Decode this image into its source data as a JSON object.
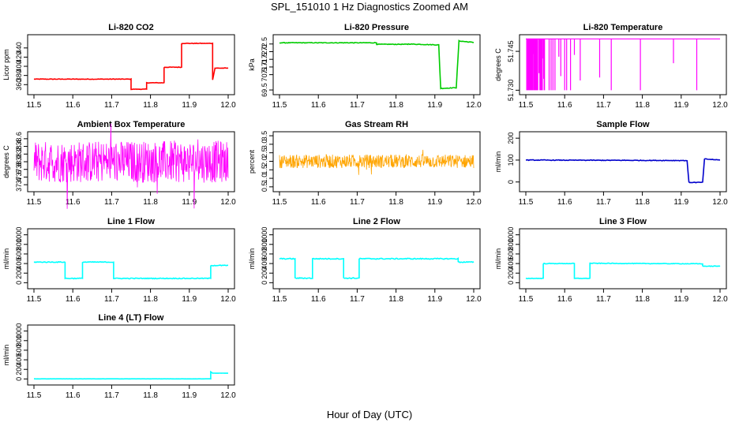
{
  "figure": {
    "title": "SPL_151010  1 Hz Diagnostics Zoomed AM",
    "xlabel": "Hour of Day (UTC)"
  },
  "chart_data": [
    {
      "type": "line",
      "title": "Li-820 CO2",
      "ylabel": "Licor ppm",
      "color": "#ff0000",
      "xlim": [
        11.5,
        12.0
      ],
      "ylim": [
        345,
        462
      ],
      "xticks": [
        "11.5",
        "11.6",
        "11.7",
        "11.8",
        "11.9",
        "12.0"
      ],
      "yticks": [
        "360",
        "380",
        "400",
        "420",
        "440"
      ],
      "noise": 0.6,
      "points": [
        [
          11.5,
          372
        ],
        [
          11.75,
          372
        ],
        [
          11.75,
          350
        ],
        [
          11.79,
          350
        ],
        [
          11.79,
          364
        ],
        [
          11.835,
          364
        ],
        [
          11.835,
          398
        ],
        [
          11.88,
          398
        ],
        [
          11.88,
          450
        ],
        [
          11.96,
          450
        ],
        [
          11.96,
          371
        ],
        [
          11.966,
          396
        ],
        [
          12.0,
          396
        ]
      ]
    },
    {
      "type": "line",
      "title": "Li-820 Pressure",
      "ylabel": "kPa",
      "color": "#00cc00",
      "xlim": [
        11.5,
        12.0
      ],
      "ylim": [
        69.4,
        72.9
      ],
      "xticks": [
        "11.5",
        "11.6",
        "11.7",
        "11.8",
        "11.9",
        "12.0"
      ],
      "yticks": [
        "69.5",
        "70.5",
        "71.0",
        "71.5",
        "72.0",
        "72.5"
      ],
      "noise": 0.02,
      "points": [
        [
          11.5,
          72.58
        ],
        [
          11.75,
          72.58
        ],
        [
          11.75,
          72.48
        ],
        [
          11.83,
          72.48
        ],
        [
          11.83,
          72.5
        ],
        [
          11.91,
          72.44
        ],
        [
          11.915,
          69.6
        ],
        [
          11.955,
          69.65
        ],
        [
          11.962,
          72.7
        ],
        [
          12.0,
          72.6
        ]
      ]
    },
    {
      "type": "dense",
      "title": "Li-820 Temperature",
      "ylabel": "degrees C",
      "color": "#ff00ff",
      "xlim": [
        11.5,
        12.0
      ],
      "ylim": [
        51.7295,
        51.7502
      ],
      "xticks": [
        "11.5",
        "11.6",
        "11.7",
        "11.8",
        "11.9",
        "12.0"
      ],
      "yticks": [
        "51.730",
        "51.745"
      ],
      "mode": "spikes"
    },
    {
      "type": "dense",
      "title": "Ambient Box Temperature",
      "ylabel": "degrees C",
      "color": "#ff00ff",
      "xlim": [
        11.5,
        12.0
      ],
      "ylim": [
        37.3,
        38.7
      ],
      "xticks": [
        "11.5",
        "11.6",
        "11.7",
        "11.8",
        "11.9",
        "12.0"
      ],
      "yticks": [
        "37.4",
        "37.6",
        "37.8",
        "38.0",
        "38.2",
        "38.4",
        "38.6"
      ],
      "mode": "band",
      "band": [
        37.45,
        38.55
      ],
      "center": 37.95
    },
    {
      "type": "dense",
      "title": "Gas Stream RH",
      "ylabel": "percent",
      "color": "#ffa500",
      "xlim": [
        11.5,
        12.0
      ],
      "ylim": [
        0.4,
        3.55
      ],
      "xticks": [
        "11.5",
        "11.6",
        "11.7",
        "11.8",
        "11.9",
        "12.0"
      ],
      "yticks": [
        "0.5",
        "1.0",
        "1.5",
        "2.0",
        "2.5",
        "3.0",
        "3.5"
      ],
      "mode": "band",
      "band": [
        1.6,
        2.4
      ],
      "center": 2.0
    },
    {
      "type": "line",
      "title": "Sample Flow",
      "ylabel": "ml/min",
      "color": "#0000cc",
      "xlim": [
        11.5,
        12.0
      ],
      "ylim": [
        -30,
        215
      ],
      "xticks": [
        "11.5",
        "11.6",
        "11.7",
        "11.8",
        "11.9",
        "12.0"
      ],
      "yticks": [
        "0",
        "100",
        "200"
      ],
      "noise": 1.5,
      "points": [
        [
          11.5,
          100
        ],
        [
          11.915,
          98
        ],
        [
          11.92,
          -2
        ],
        [
          11.955,
          -2
        ],
        [
          11.96,
          105
        ],
        [
          12.0,
          100
        ]
      ]
    },
    {
      "type": "line",
      "title": "Line 1 Flow",
      "ylabel": "ml/min",
      "color": "#00ffff",
      "xlim": [
        11.5,
        12.0
      ],
      "ylim": [
        -60,
        1060
      ],
      "xticks": [
        "11.5",
        "11.6",
        "11.7",
        "11.8",
        "11.9",
        "12.0"
      ],
      "yticks": [
        "0",
        "200",
        "400",
        "600",
        "800",
        "1000"
      ],
      "noise": 8,
      "points": [
        [
          11.5,
          430
        ],
        [
          11.58,
          430
        ],
        [
          11.58,
          90
        ],
        [
          11.625,
          90
        ],
        [
          11.625,
          430
        ],
        [
          11.705,
          430
        ],
        [
          11.705,
          90
        ],
        [
          11.955,
          90
        ],
        [
          11.955,
          360
        ],
        [
          12.0,
          360
        ]
      ]
    },
    {
      "type": "line",
      "title": "Line 2 Flow",
      "ylabel": "ml/min",
      "color": "#00ffff",
      "xlim": [
        11.5,
        12.0
      ],
      "ylim": [
        -60,
        1060
      ],
      "xticks": [
        "11.5",
        "11.6",
        "11.7",
        "11.8",
        "11.9",
        "12.0"
      ],
      "yticks": [
        "0",
        "200",
        "400",
        "600",
        "800",
        "1000"
      ],
      "noise": 10,
      "points": [
        [
          11.5,
          500
        ],
        [
          11.54,
          500
        ],
        [
          11.54,
          95
        ],
        [
          11.585,
          95
        ],
        [
          11.585,
          500
        ],
        [
          11.665,
          500
        ],
        [
          11.665,
          95
        ],
        [
          11.705,
          95
        ],
        [
          11.705,
          500
        ],
        [
          11.96,
          500
        ],
        [
          11.96,
          430
        ],
        [
          12.0,
          430
        ]
      ]
    },
    {
      "type": "line",
      "title": "Line 3 Flow",
      "ylabel": "ml/min",
      "color": "#00ffff",
      "xlim": [
        11.5,
        12.0
      ],
      "ylim": [
        -60,
        1060
      ],
      "xticks": [
        "11.5",
        "11.6",
        "11.7",
        "11.8",
        "11.9",
        "12.0"
      ],
      "yticks": [
        "0",
        "200",
        "400",
        "600",
        "800",
        "1000"
      ],
      "noise": 6,
      "points": [
        [
          11.5,
          90
        ],
        [
          11.545,
          90
        ],
        [
          11.545,
          400
        ],
        [
          11.625,
          400
        ],
        [
          11.625,
          90
        ],
        [
          11.665,
          90
        ],
        [
          11.665,
          405
        ],
        [
          11.955,
          395
        ],
        [
          11.955,
          345
        ],
        [
          12.0,
          345
        ]
      ]
    },
    {
      "type": "line",
      "title": "Line 4 (LT) Flow",
      "ylabel": "ml/min",
      "color": "#00ffff",
      "xlim": [
        11.5,
        12.0
      ],
      "ylim": [
        -60,
        1060
      ],
      "xticks": [
        "11.5",
        "11.6",
        "11.7",
        "11.8",
        "11.9",
        "12.0"
      ],
      "yticks": [
        "0",
        "200",
        "400",
        "600",
        "800",
        "1000"
      ],
      "noise": 1,
      "points": [
        [
          11.5,
          2
        ],
        [
          11.955,
          2
        ],
        [
          11.955,
          150
        ],
        [
          11.96,
          120
        ],
        [
          12.0,
          120
        ]
      ]
    }
  ]
}
